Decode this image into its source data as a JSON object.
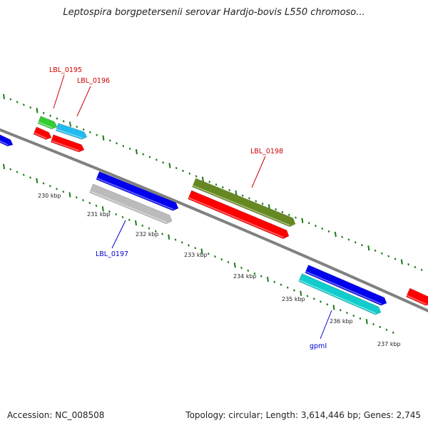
{
  "title": "Leptospira borgpetersenii serovar Hardjo-bovis L550 chromoso...",
  "footer": {
    "accession_label": "Accession:",
    "accession_value": "NC_008508",
    "topology_label": "Topology:",
    "topology_value": "circular",
    "length_label": "Length:",
    "length_value": "3,614,446 bp",
    "genes_label": "Genes:",
    "genes_value": "2,745"
  },
  "scale_labels": [
    "230 kbp",
    "231 kbp",
    "232 kbp",
    "233 kbp",
    "234 kbp",
    "235 kbp",
    "236 kbp",
    "237 kbp"
  ],
  "feature_labels": {
    "lbl_0195": "LBL_0195",
    "lbl_0196": "LBL_0196",
    "lbl_0197": "LBL_0197",
    "lbl_0198": "LBL_0198",
    "gpml": "gpmI"
  },
  "colors": {
    "backbone": "#808080",
    "tick": "#1a7a1a",
    "label_red": "#cc0000",
    "label_blue": "#0000cc",
    "blue": "#0000ee",
    "red": "#ff0000",
    "green": "#33cc33",
    "skyblue": "#22bbee",
    "olive": "#668822",
    "silver": "#bbbbbb",
    "cyan": "#11cccc"
  }
}
